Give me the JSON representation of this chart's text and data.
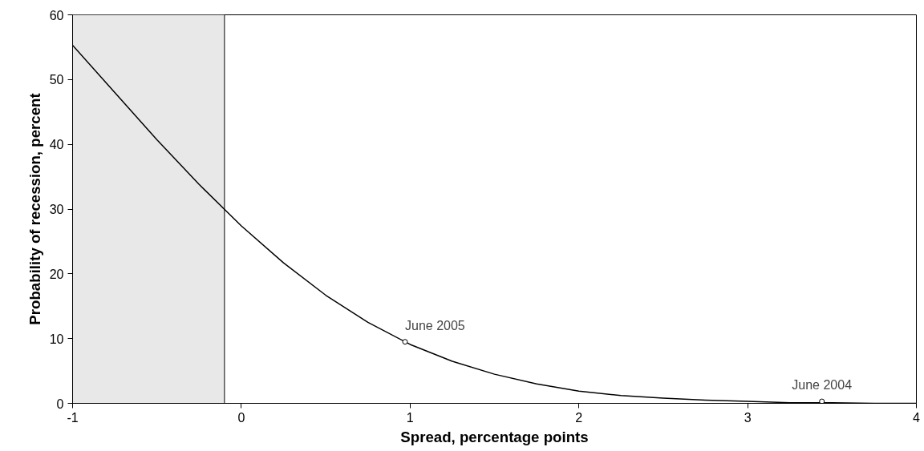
{
  "chart_data": {
    "type": "line",
    "xlabel": "Spread, percentage points",
    "ylabel": "Probability of recession, percent",
    "xlim": [
      -1,
      4
    ],
    "ylim": [
      0,
      60
    ],
    "xticks": [
      -1,
      0,
      1,
      2,
      3,
      4
    ],
    "yticks": [
      0,
      10,
      20,
      30,
      40,
      50,
      60
    ],
    "grid": false,
    "marker": "none",
    "line_style": "solid",
    "series": [
      {
        "type": "line",
        "color": "#000000",
        "x": [
          -1,
          -0.75,
          -0.5,
          -0.25,
          0,
          0.25,
          0.5,
          0.75,
          1,
          1.25,
          1.5,
          1.75,
          2,
          2.25,
          2.5,
          2.75,
          3,
          3.25,
          3.5,
          3.75,
          4
        ],
        "values": [
          55.3,
          48.0,
          40.7,
          33.8,
          27.4,
          21.7,
          16.7,
          12.5,
          9.1,
          6.5,
          4.5,
          3.0,
          1.9,
          1.2,
          0.8,
          0.5,
          0.3,
          0.1,
          0.1,
          0.0,
          0.0
        ]
      },
      {
        "type": "scatter",
        "color": "#000000",
        "marker": "circle",
        "x": [
          0.97,
          3.44
        ],
        "values": [
          9.5,
          0.3
        ]
      }
    ],
    "bands": [
      {
        "axis": "x",
        "from": -1,
        "to": -0.1,
        "color": "#e8e8e8"
      }
    ],
    "ref_lines": [
      {
        "axis": "x",
        "value": -0.1,
        "color": "#000000",
        "line_style": "solid"
      }
    ],
    "annotations": [
      {
        "text": "June 2005",
        "x": 0.97,
        "y": 9.5
      },
      {
        "text": "June 2004",
        "x": 3.44,
        "y": 0.3
      }
    ]
  }
}
